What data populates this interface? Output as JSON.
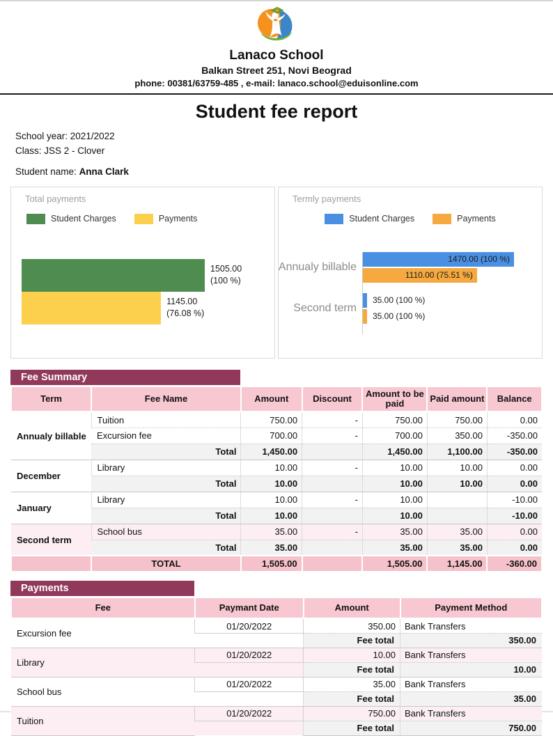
{
  "report": {
    "school_name": "Lanaco School",
    "address": "Balkan Street 251, Novi Beograd",
    "contact_line": "phone: 00381/63759-485 , e-mail: lanaco.school@eduisonline.com",
    "title": "Student fee report",
    "school_year_line": "School year: 2021/2022",
    "class_line": "Class: JSS 2 - Clover",
    "student_name_label": "Student name: ",
    "student_name": "Anna Clark"
  },
  "colors": {
    "section_band": "#91395B",
    "table_header_pink": "#F8C8D2",
    "grand_total_pink": "#F5C2CC",
    "highlight_row_pink": "#FCEEF2",
    "total_row_grey": "#F2F2F2",
    "chart_green": "#4E8D4F",
    "chart_yellow": "#FCCF4D",
    "chart_blue": "#4A90E2",
    "chart_orange": "#F5A93F",
    "logo_orange": "#F5921E",
    "logo_blue": "#3C85C8",
    "logo_green": "#72AE3C"
  },
  "chart_data": [
    {
      "type": "bar",
      "orientation": "horizontal",
      "title": "Total payments",
      "legend_position": "top-left",
      "grid": false,
      "xlim": [
        0,
        1700
      ],
      "categories": [
        "Total"
      ],
      "series": [
        {
          "name": "Student Charges",
          "color": "#4E8D4F",
          "values": [
            1505.0
          ],
          "value_label": "1505.00",
          "percent_label": "(100 %)"
        },
        {
          "name": "Payments",
          "color": "#FCCF4D",
          "values": [
            1145.0
          ],
          "value_label": "1145.00",
          "percent_label": "(76.08 %)"
        }
      ]
    },
    {
      "type": "bar",
      "orientation": "horizontal",
      "title": "Termly payments",
      "legend_position": "top-center",
      "grid": false,
      "xlim": [
        0,
        1470
      ],
      "categories": [
        "Annualy billable",
        "Second term"
      ],
      "series": [
        {
          "name": "Student Charges",
          "color": "#4A90E2",
          "values": [
            1470.0,
            35.0
          ],
          "labels": [
            "1470.00 (100 %)",
            "35.00 (100 %)"
          ]
        },
        {
          "name": "Payments",
          "color": "#F5A93F",
          "values": [
            1110.0,
            35.0
          ],
          "labels": [
            "1110.00 (75.51 %)",
            "35.00 (100 %)"
          ]
        }
      ]
    }
  ],
  "fee_summary": {
    "section_title": "Fee Summary",
    "columns": [
      "Term",
      "Fee Name",
      "Amount",
      "Discount",
      "Amount to be paid",
      "Paid amount",
      "Balance"
    ],
    "groups": [
      {
        "term": "Annualy billable",
        "rows": [
          {
            "fee": "Tuition",
            "amount": "750.00",
            "discount": "-",
            "to_pay": "750.00",
            "paid": "750.00",
            "balance": "0.00"
          },
          {
            "fee": "Excursion fee",
            "amount": "700.00",
            "discount": "-",
            "to_pay": "700.00",
            "paid": "350.00",
            "balance": "-350.00"
          }
        ],
        "total": {
          "label": "Total",
          "amount": "1,450.00",
          "discount": "",
          "to_pay": "1,450.00",
          "paid": "1,100.00",
          "balance": "-350.00"
        }
      },
      {
        "term": "December",
        "rows": [
          {
            "fee": "Library",
            "amount": "10.00",
            "discount": "-",
            "to_pay": "10.00",
            "paid": "10.00",
            "balance": "0.00"
          }
        ],
        "total": {
          "label": "Total",
          "amount": "10.00",
          "discount": "",
          "to_pay": "10.00",
          "paid": "10.00",
          "balance": "0.00"
        }
      },
      {
        "term": "January",
        "rows": [
          {
            "fee": "Library",
            "amount": "10.00",
            "discount": "-",
            "to_pay": "10.00",
            "paid": "",
            "balance": "-10.00"
          }
        ],
        "total": {
          "label": "Total",
          "amount": "10.00",
          "discount": "",
          "to_pay": "10.00",
          "paid": "",
          "balance": "-10.00"
        }
      },
      {
        "term": "Second term",
        "rows": [
          {
            "fee": "School bus",
            "amount": "35.00",
            "discount": "-",
            "to_pay": "35.00",
            "paid": "35.00",
            "balance": "0.00"
          }
        ],
        "total": {
          "label": "Total",
          "amount": "35.00",
          "discount": "",
          "to_pay": "35.00",
          "paid": "35.00",
          "balance": "0.00"
        }
      }
    ],
    "grand_total": {
      "label": "TOTAL",
      "amount": "1,505.00",
      "discount": "",
      "to_pay": "1,505.00",
      "paid": "1,145.00",
      "balance": "-360.00"
    }
  },
  "payments": {
    "section_title": "Payments",
    "columns": [
      "Fee",
      "Paymant Date",
      "Amount",
      "Payment Method"
    ],
    "fee_total_label": "Fee total",
    "groups": [
      {
        "fee": "Excursion fee",
        "date": "01/20/2022",
        "amount": "350.00",
        "method": "Bank Transfers",
        "total": "350.00"
      },
      {
        "fee": "Library",
        "date": "01/20/2022",
        "amount": "10.00",
        "method": "Bank Transfers",
        "total": "10.00"
      },
      {
        "fee": "School bus",
        "date": "01/20/2022",
        "amount": "35.00",
        "method": "Bank Transfers",
        "total": "35.00"
      },
      {
        "fee": "Tuition",
        "date": "01/20/2022",
        "amount": "750.00",
        "method": "Bank Transfers",
        "total": "750.00"
      }
    ]
  }
}
